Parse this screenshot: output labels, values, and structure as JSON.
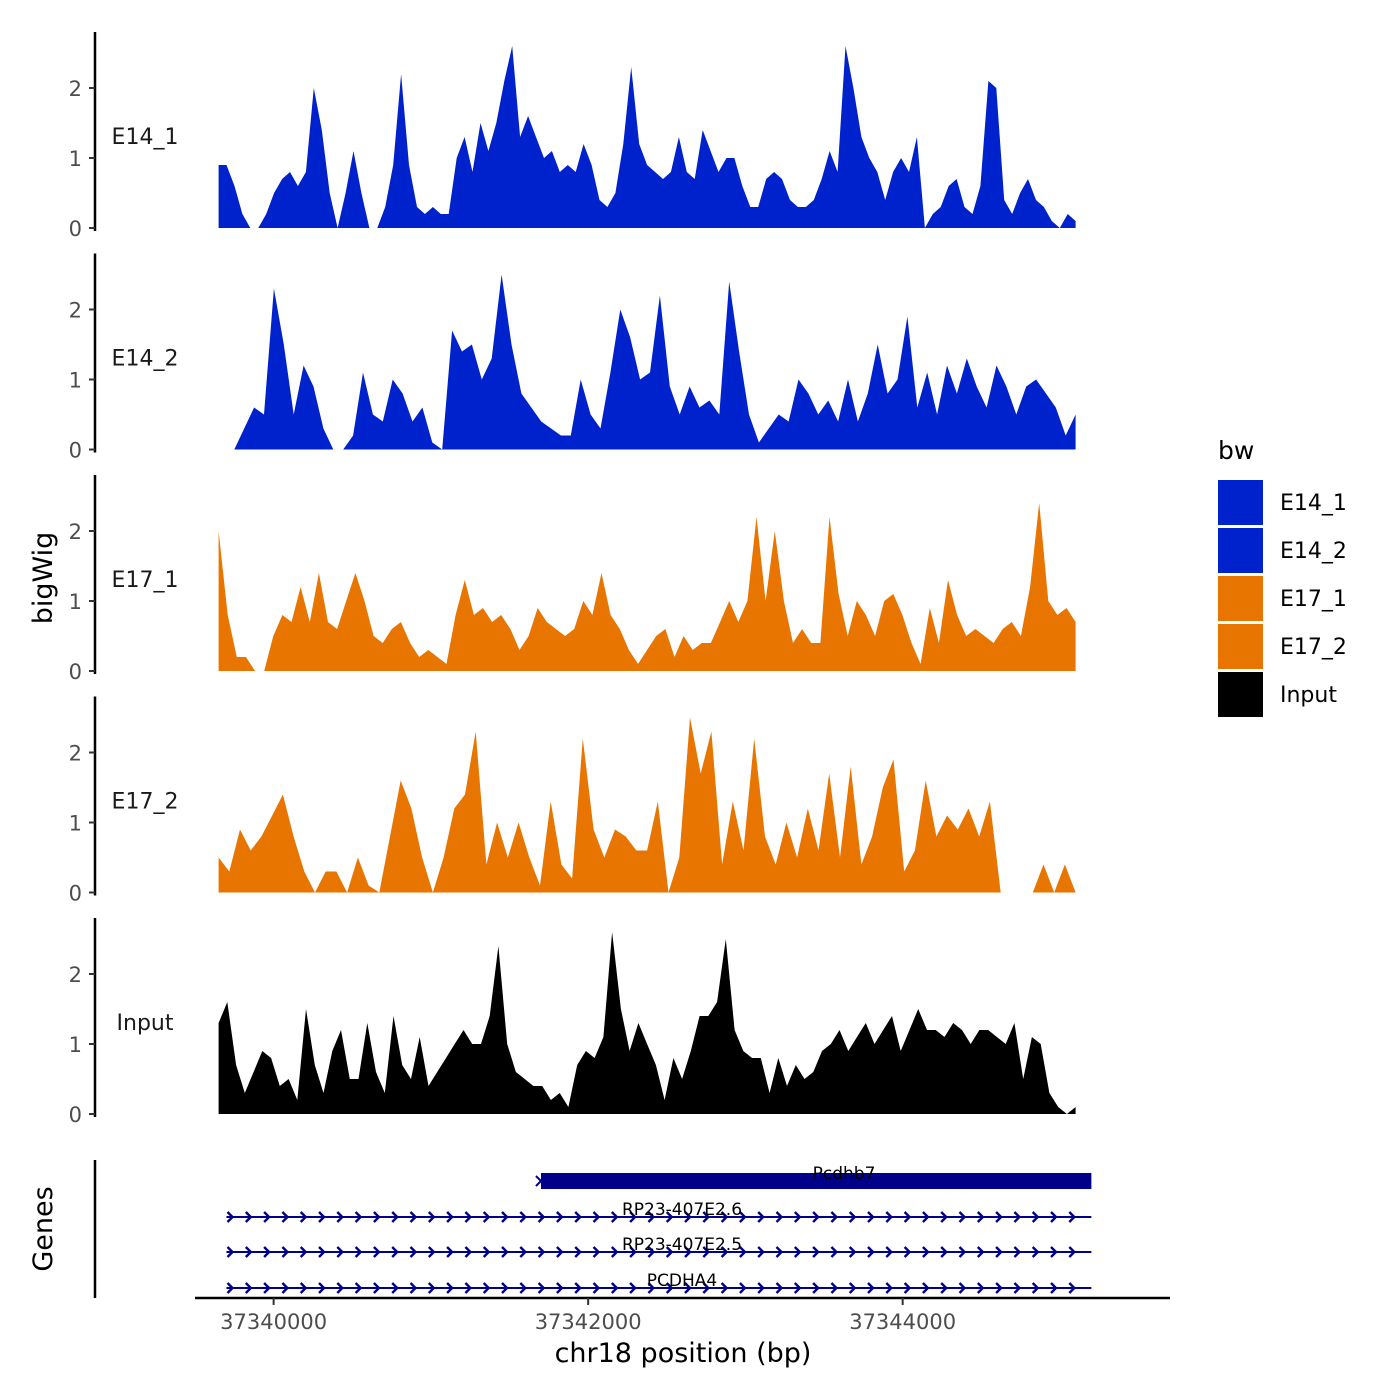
{
  "chart_data": {
    "type": "area",
    "ylabel": "bigWig",
    "xlabel": "chr18 position (bp)",
    "xlim": [
      37339500,
      37345700
    ],
    "ylim": [
      0,
      2.8
    ],
    "yticks": [
      0,
      1,
      2
    ],
    "xticks": [
      37340000,
      37342000,
      37344000
    ],
    "xtick_labels": [
      "37340000",
      "37342000",
      "37344000"
    ],
    "legend": {
      "title": "bw",
      "placement": "right",
      "entries": [
        {
          "label": "E14_1",
          "color": "#0022CC"
        },
        {
          "label": "E14_2",
          "color": "#0022CC"
        },
        {
          "label": "E17_1",
          "color": "#E87500"
        },
        {
          "label": "E17_2",
          "color": "#E87500"
        },
        {
          "label": "Input",
          "color": "#000000"
        }
      ]
    },
    "tracks": [
      {
        "name": "E14_1",
        "color": "#0022CC",
        "x_start": 37339650,
        "x_end": 37345100,
        "values": [
          0.9,
          0.9,
          0.6,
          0.2,
          0,
          0,
          0.2,
          0.5,
          0.7,
          0.8,
          0.6,
          0.8,
          2.0,
          1.4,
          0.5,
          0,
          0.5,
          1.1,
          0.5,
          0,
          0,
          0.3,
          0.9,
          2.2,
          0.9,
          0.3,
          0.2,
          0.3,
          0.2,
          0.2,
          1.0,
          1.3,
          0.8,
          1.5,
          1.1,
          1.5,
          2.1,
          2.6,
          1.3,
          1.6,
          1.3,
          1.0,
          1.1,
          0.8,
          0.9,
          0.8,
          1.2,
          0.9,
          0.4,
          0.3,
          0.5,
          1.2,
          2.3,
          1.2,
          0.9,
          0.8,
          0.7,
          0.8,
          1.3,
          0.8,
          0.7,
          1.4,
          1.1,
          0.8,
          1.0,
          1.0,
          0.6,
          0.3,
          0.3,
          0.7,
          0.8,
          0.7,
          0.4,
          0.3,
          0.3,
          0.4,
          0.7,
          1.1,
          0.8,
          2.6,
          2.0,
          1.3,
          1.0,
          0.8,
          0.4,
          0.8,
          1.0,
          0.8,
          1.3,
          0,
          0.2,
          0.3,
          0.6,
          0.7,
          0.3,
          0.2,
          0.6,
          2.1,
          2.0,
          0.4,
          0.2,
          0.5,
          0.7,
          0.4,
          0.3,
          0.1,
          0,
          0.2,
          0.1
        ]
      },
      {
        "name": "E14_2",
        "color": "#0022CC",
        "x_start": 37339750,
        "x_end": 37345100,
        "values": [
          0,
          0.3,
          0.6,
          0.5,
          2.3,
          1.5,
          0.5,
          1.2,
          0.9,
          0.3,
          0,
          0,
          0.2,
          1.1,
          0.5,
          0.4,
          1.0,
          0.8,
          0.4,
          0.6,
          0.1,
          0,
          1.7,
          1.4,
          1.5,
          1.0,
          1.3,
          2.5,
          1.5,
          0.8,
          0.6,
          0.4,
          0.3,
          0.2,
          0.2,
          1.0,
          0.5,
          0.3,
          1.1,
          2.0,
          1.6,
          1.0,
          1.1,
          2.2,
          0.9,
          0.5,
          0.9,
          0.6,
          0.7,
          0.5,
          2.4,
          1.4,
          0.5,
          0.1,
          0.3,
          0.5,
          0.4,
          1.0,
          0.8,
          0.5,
          0.7,
          0.4,
          1.0,
          0.4,
          0.8,
          1.5,
          0.8,
          1.0,
          1.9,
          0.6,
          1.1,
          0.5,
          1.2,
          0.8,
          1.3,
          0.9,
          0.6,
          1.2,
          0.9,
          0.5,
          0.9,
          1.0,
          0.8,
          0.6,
          0.2,
          0.5
        ]
      },
      {
        "name": "E17_1",
        "color": "#E87500",
        "x_start": 37339650,
        "x_end": 37345100,
        "values": [
          2.0,
          0.8,
          0.2,
          0.2,
          0,
          0,
          0.5,
          0.8,
          0.7,
          1.2,
          0.7,
          1.4,
          0.7,
          0.6,
          1.0,
          1.4,
          1.0,
          0.5,
          0.4,
          0.6,
          0.7,
          0.4,
          0.2,
          0.3,
          0.2,
          0.1,
          0.8,
          1.3,
          0.8,
          0.9,
          0.7,
          0.8,
          0.6,
          0.3,
          0.5,
          0.9,
          0.7,
          0.6,
          0.5,
          0.6,
          1.0,
          0.8,
          1.4,
          0.8,
          0.6,
          0.3,
          0.1,
          0.3,
          0.5,
          0.6,
          0.2,
          0.5,
          0.3,
          0.4,
          0.4,
          0.7,
          1.0,
          0.7,
          1.0,
          2.2,
          1.0,
          2.0,
          1.0,
          0.4,
          0.6,
          0.4,
          0.4,
          2.2,
          1.1,
          0.5,
          1.0,
          0.8,
          0.5,
          1.0,
          1.1,
          0.8,
          0.4,
          0.1,
          0.9,
          0.4,
          1.3,
          0.8,
          0.5,
          0.6,
          0.5,
          0.4,
          0.6,
          0.7,
          0.5,
          1.2,
          2.4,
          1.0,
          0.8,
          0.9,
          0.7
        ]
      },
      {
        "name": "E17_2",
        "color": "#E87500",
        "x_start": 37339650,
        "x_end": 37345100,
        "values": [
          0.5,
          0.3,
          0.9,
          0.6,
          0.8,
          1.1,
          1.4,
          0.8,
          0.3,
          0,
          0.3,
          0.3,
          0,
          0.5,
          0.1,
          0,
          0.8,
          1.6,
          1.2,
          0.5,
          0,
          0.5,
          1.2,
          1.4,
          2.3,
          0.4,
          1.0,
          0.5,
          1.0,
          0.5,
          0.1,
          1.3,
          0.4,
          0.2,
          2.2,
          0.9,
          0.5,
          0.9,
          0.8,
          0.6,
          0.6,
          1.3,
          0,
          0.5,
          2.5,
          1.7,
          2.3,
          0.4,
          1.3,
          0.6,
          2.2,
          0.8,
          0.4,
          1.0,
          0.5,
          1.2,
          0.6,
          1.7,
          0.5,
          1.8,
          0.4,
          0.8,
          1.5,
          1.9,
          0.3,
          0.6,
          1.6,
          0.8,
          1.1,
          0.9,
          1.2,
          0.8,
          1.3,
          0,
          0,
          0,
          0,
          0.4,
          0,
          0.4,
          0
        ]
      },
      {
        "name": "Input",
        "color": "#000000",
        "x_start": 37339650,
        "x_end": 37345100,
        "values": [
          1.3,
          1.6,
          0.7,
          0.3,
          0.6,
          0.9,
          0.8,
          0.4,
          0.5,
          0.2,
          1.5,
          0.7,
          0.3,
          0.9,
          1.2,
          0.5,
          0.5,
          1.3,
          0.6,
          0.3,
          1.4,
          0.7,
          0.5,
          1.1,
          0.4,
          0.6,
          0.8,
          1.0,
          1.2,
          1.0,
          1.0,
          1.4,
          2.4,
          1.0,
          0.6,
          0.5,
          0.4,
          0.4,
          0.2,
          0.3,
          0.1,
          0.7,
          0.9,
          0.8,
          1.1,
          2.6,
          1.5,
          0.9,
          1.3,
          1.0,
          0.7,
          0.2,
          0.8,
          0.5,
          0.9,
          1.4,
          1.4,
          1.6,
          2.5,
          1.2,
          0.9,
          0.8,
          0.8,
          0.3,
          0.8,
          0.4,
          0.7,
          0.5,
          0.6,
          0.9,
          1.0,
          1.2,
          0.9,
          1.1,
          1.3,
          1.0,
          1.2,
          1.4,
          0.9,
          1.2,
          1.5,
          1.2,
          1.2,
          1.1,
          1.3,
          1.2,
          1.0,
          1.2,
          1.2,
          1.1,
          1.0,
          1.3,
          0.5,
          1.1,
          1.0,
          0.3,
          0.1,
          0,
          0.1
        ]
      }
    ],
    "genes_label": "Genes",
    "genes": [
      {
        "name": "Pcdhb7",
        "start": 37341700,
        "end": 37345200,
        "strand": "+",
        "type": "exon"
      },
      {
        "name": "RP23-407E2.6",
        "start": 37339700,
        "end": 37345200,
        "strand": "+",
        "type": "intron"
      },
      {
        "name": "RP23-407E2.5",
        "start": 37339700,
        "end": 37345200,
        "strand": "+",
        "type": "intron"
      },
      {
        "name": "PCDHA4",
        "start": 37339700,
        "end": 37345200,
        "strand": "+",
        "type": "intron"
      }
    ]
  }
}
